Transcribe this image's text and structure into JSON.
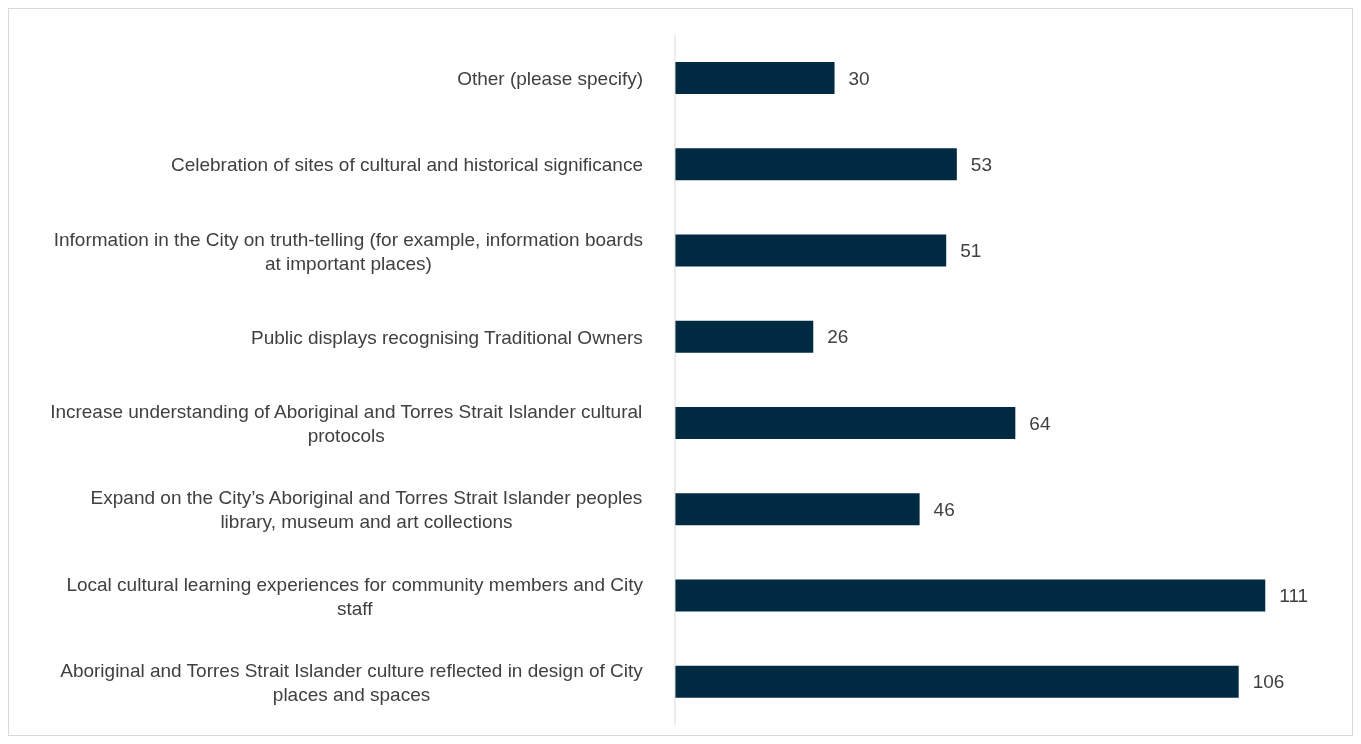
{
  "chart_data": {
    "type": "bar",
    "orientation": "horizontal",
    "categories": [
      "Other (please specify)",
      "Celebration of sites of cultural and historical significance",
      "Information in the City on truth-telling (for example, information boards at important places)",
      "Public displays recognising Traditional Owners",
      "Increase understanding of Aboriginal and Torres Strait Islander cultural protocols",
      "Expand on the City’s Aboriginal and Torres Strait Islander peoples library, museum and art collections",
      "Local cultural learning experiences for community members and City staff",
      "Aboriginal and Torres Strait Islander culture reflected in design of City places and spaces"
    ],
    "values": [
      30,
      53,
      51,
      26,
      64,
      46,
      111,
      106
    ],
    "color": "#002a42",
    "data_labels": true,
    "grid": false,
    "legend": false
  }
}
